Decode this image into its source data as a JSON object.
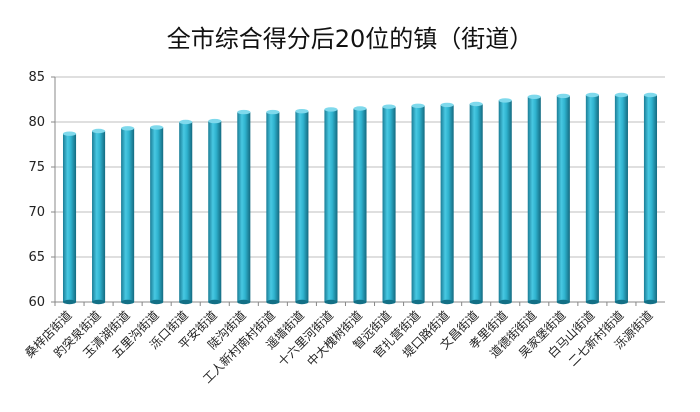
{
  "chart_data": {
    "type": "bar",
    "title": "全市综合得分后20位的镇（街道）",
    "xlabel": "",
    "ylabel": "",
    "ylim": [
      60,
      85
    ],
    "yticks": [
      60,
      65,
      70,
      75,
      80,
      85
    ],
    "grid": true,
    "categories": [
      "桑梓店街道",
      "趵突泉街道",
      "玉清湖街道",
      "五里沟街道",
      "泺口街道",
      "平安街道",
      "陡沟街道",
      "工人新村南村街道",
      "遥墙街道",
      "十六里河街道",
      "中大槐树街道",
      "智远街道",
      "官扎营街道",
      "堤口路街道",
      "文昌街道",
      "孝里街道",
      "道德街街道",
      "吴家堡街道",
      "白马山街道",
      "二七新村街道",
      "泺源街道"
    ],
    "values": [
      78.7,
      79.0,
      79.3,
      79.4,
      80.0,
      80.1,
      81.1,
      81.1,
      81.2,
      81.4,
      81.5,
      81.7,
      81.8,
      81.9,
      82.0,
      82.4,
      82.8,
      82.9,
      83.0,
      83.0,
      83.0
    ],
    "bar_color": "#2fb3cf"
  }
}
